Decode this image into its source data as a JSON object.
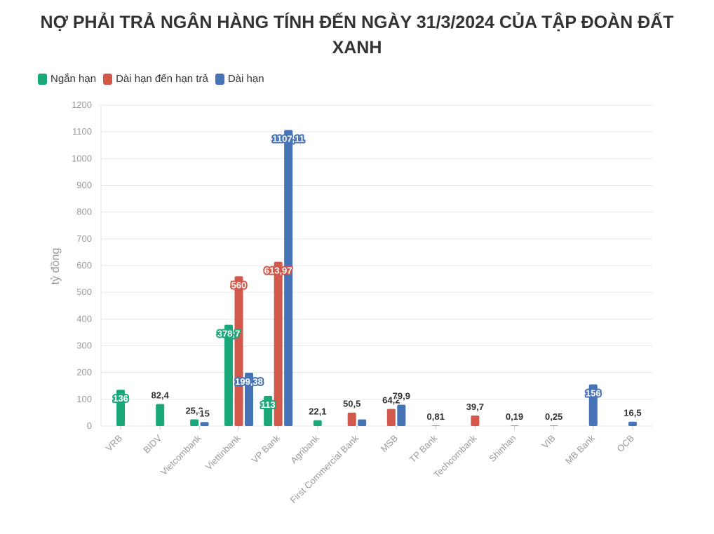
{
  "chart_data": {
    "type": "bar",
    "title": "NỢ PHẢI TRẢ NGÂN HÀNG TÍNH ĐẾN NGÀY 31/3/2024 CỦA TẬP ĐOÀN ĐẤT XANH",
    "ylabel": "tỷ đồng",
    "ylim": [
      0,
      1200
    ],
    "yticks": [
      0,
      100,
      200,
      300,
      400,
      500,
      600,
      700,
      800,
      900,
      1000,
      1100,
      1200
    ],
    "grid": true,
    "legend_position": "top-left",
    "categories": [
      "VRB",
      "BIDV",
      "Vietcombank",
      "Viettinbank",
      "VP Bank",
      "Agribank",
      "First Commercial Bank",
      "MSB",
      "TP Bank",
      "Techcombank",
      "Shinhan",
      "VIB",
      "MB Bank",
      "OCB"
    ],
    "series": [
      {
        "name": "Ngắn hạn",
        "color": "#1aa87a",
        "values": [
          136,
          82.4,
          25.3,
          378.7,
          113,
          22.1,
          null,
          null,
          null,
          null,
          null,
          null,
          null,
          null
        ],
        "labels": [
          "136",
          "82,4",
          "25,3",
          "378,7",
          "113",
          "22,1",
          null,
          null,
          null,
          null,
          null,
          null,
          null,
          null
        ]
      },
      {
        "name": "Dài hạn đến hạn trả",
        "color": "#d1584a",
        "values": [
          null,
          null,
          null,
          560,
          613.97,
          null,
          50.5,
          64.2,
          null,
          39.7,
          null,
          null,
          null,
          null
        ],
        "labels": [
          null,
          null,
          null,
          "560",
          "613,97",
          null,
          "50,5",
          "64,2",
          null,
          "39,7",
          null,
          null,
          null,
          null
        ]
      },
      {
        "name": "Dài hạn",
        "color": "#4573b5",
        "values": [
          null,
          null,
          15,
          199.38,
          1107.11,
          null,
          25,
          79.9,
          0.81,
          null,
          0.19,
          0.25,
          156,
          16.5
        ],
        "labels": [
          null,
          null,
          "15",
          "199,38",
          "1107,11",
          null,
          null,
          "79,9",
          "0,81",
          null,
          "0,19",
          "0,25",
          "156",
          "16,5"
        ]
      }
    ]
  }
}
